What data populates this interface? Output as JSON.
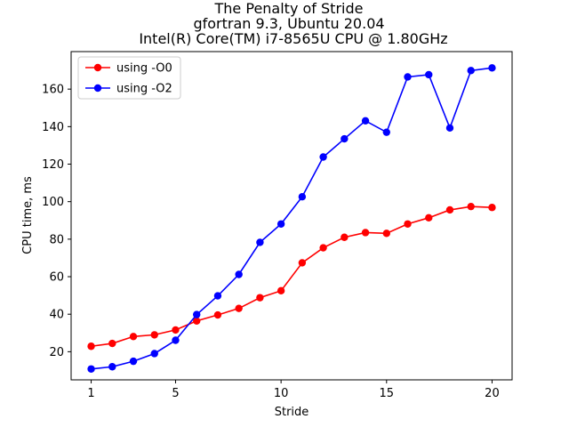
{
  "chart_data": {
    "type": "line",
    "title": [
      "The Penalty of Stride",
      "gfortran 9.3, Ubuntu 20.04",
      "Intel(R) Core(TM) i7-8565U CPU @ 1.80GHz"
    ],
    "xlabel": "Stride",
    "ylabel": "CPU time, ms",
    "xlim": [
      0.05,
      20.95
    ],
    "ylim": [
      5,
      180
    ],
    "xticks": [
      1,
      5,
      10,
      15,
      20
    ],
    "yticks": [
      20,
      40,
      60,
      80,
      100,
      120,
      140,
      160
    ],
    "grid": false,
    "legend_position": "top-left",
    "x": [
      1,
      2,
      3,
      4,
      5,
      6,
      7,
      8,
      9,
      10,
      11,
      12,
      13,
      14,
      15,
      16,
      17,
      18,
      19,
      20
    ],
    "series": [
      {
        "name": "using -O0",
        "color": "#ff0000",
        "values": [
          22.9,
          24.4,
          28.1,
          29.0,
          31.6,
          36.4,
          39.6,
          43.1,
          48.8,
          52.5,
          67.4,
          75.4,
          81.0,
          83.5,
          83.1,
          88.1,
          91.4,
          95.6,
          97.4,
          96.9
        ]
      },
      {
        "name": "using -O2",
        "color": "#0000ff",
        "values": [
          10.8,
          12.0,
          14.9,
          19.0,
          26.1,
          39.8,
          49.8,
          61.2,
          78.3,
          88.1,
          102.6,
          123.8,
          133.5,
          143.1,
          137.0,
          166.5,
          167.7,
          139.3,
          169.9,
          171.3
        ]
      }
    ]
  }
}
